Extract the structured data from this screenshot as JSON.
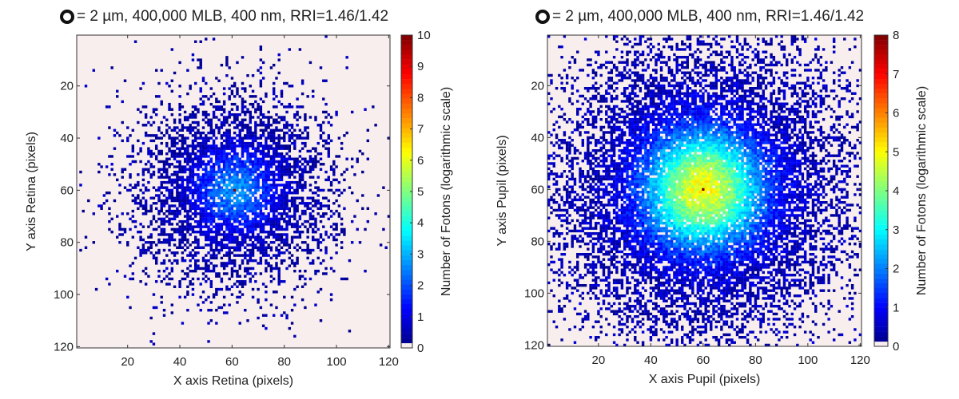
{
  "chart_data": [
    {
      "type": "heatmap",
      "title": "= 2 µm, 400,000 MLB, 400 nm, RRI=1.46/1.42",
      "title_symbol": "ring-icon",
      "xlabel": "X axis Retina (pixels)",
      "ylabel": "Y axis Retina (pixels)",
      "colorbar_label": "Number of Fotons (logarithmic scale)",
      "xlim": [
        0.5,
        120.5
      ],
      "ylim": [
        120.5,
        0.5
      ],
      "xticks": [
        20,
        40,
        60,
        80,
        100,
        120
      ],
      "yticks": [
        20,
        40,
        60,
        80,
        100,
        120
      ],
      "colorbar_range": [
        0,
        10
      ],
      "colorbar_ticks": [
        0,
        1,
        2,
        3,
        4,
        5,
        6,
        7,
        8,
        9,
        10
      ],
      "grid_size": [
        120,
        120
      ],
      "peak": {
        "x": 61,
        "y": 60,
        "value": 10
      },
      "spread_sigma": 19,
      "background_color": "#f9eeee"
    },
    {
      "type": "heatmap",
      "title": "= 2 µm, 400,000 MLB, 400 nm, RRI=1.46/1.42",
      "title_symbol": "ring-icon",
      "xlabel": "X axis Pupil (pixels)",
      "ylabel": "Y axis Pupil (pixels)",
      "colorbar_label": "Number of Fotons (logarithmic scale)",
      "xlim": [
        0.5,
        120.5
      ],
      "ylim": [
        120.5,
        0.5
      ],
      "xticks": [
        20,
        40,
        60,
        80,
        100,
        120
      ],
      "yticks": [
        20,
        40,
        60,
        80,
        100,
        120
      ],
      "colorbar_range": [
        0,
        8
      ],
      "colorbar_ticks": [
        0,
        1,
        2,
        3,
        4,
        5,
        6,
        7,
        8
      ],
      "grid_size": [
        120,
        120
      ],
      "peak": {
        "x": 60,
        "y": 60,
        "value": 8
      },
      "spread_sigma": 28,
      "background_color": "#f9eeee"
    }
  ]
}
